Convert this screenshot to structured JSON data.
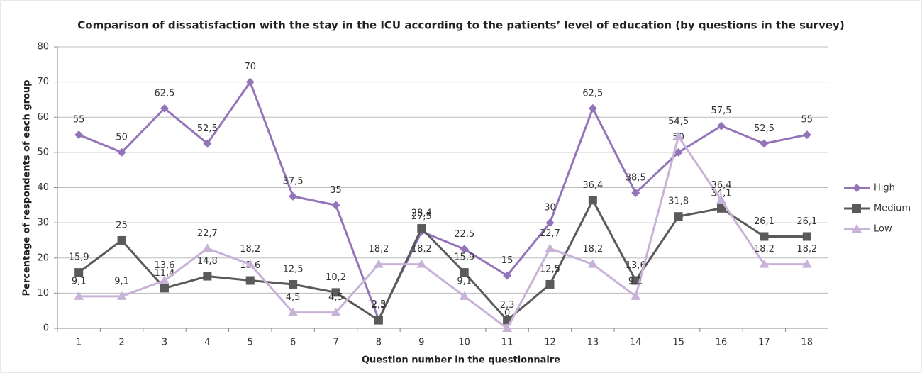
{
  "chart_data": {
    "type": "line",
    "title": "Comparison of dissatisfaction with the stay in the ICU according to the patients’ level of education (by questions in the survey)",
    "x_label": "Question number in the questionnaire",
    "y_label": "Percentage of respondents of each group",
    "categories": [
      "1",
      "2",
      "3",
      "4",
      "5",
      "6",
      "7",
      "8",
      "9",
      "10",
      "11",
      "12",
      "13",
      "14",
      "15",
      "16",
      "17",
      "18"
    ],
    "ylim": [
      0,
      80
    ],
    "yticks": [
      0,
      10,
      20,
      30,
      40,
      50,
      60,
      70,
      80
    ],
    "grid": true,
    "legend": "right",
    "series": [
      {
        "name": "High",
        "color": "#9474b8",
        "marker": "diamond",
        "values": [
          55,
          50,
          62.5,
          52.5,
          70,
          37.5,
          35,
          2.5,
          27.5,
          22.5,
          15,
          30,
          62.5,
          38.5,
          50,
          57.5,
          52.5,
          55
        ],
        "value_labels": [
          "55",
          "50",
          "62,5",
          "52,5",
          "70",
          "37,5",
          "35",
          "2,5",
          "27,5",
          "22,5",
          "15",
          "30",
          "62,5",
          "38,5",
          "50",
          "57,5",
          "52,5",
          "55"
        ]
      },
      {
        "name": "Medium",
        "color": "#5a5a5a",
        "marker": "square",
        "values": [
          15.9,
          25,
          11.4,
          14.8,
          13.6,
          12.5,
          10.2,
          2.3,
          28.4,
          15.9,
          2.3,
          12.5,
          36.4,
          13.6,
          31.8,
          34.1,
          26.1,
          26.1
        ],
        "value_labels": [
          "15,9",
          "25",
          "11,4",
          "14,8",
          "13,6",
          "12,5",
          "10,2",
          "2,3",
          "28,4",
          "15,9",
          "2,3",
          "12,5",
          "36,4",
          "13,6",
          "31,8",
          "34,1",
          "26,1",
          "26,1"
        ]
      },
      {
        "name": "Low",
        "color": "#c8b2d8",
        "marker": "triangle",
        "values": [
          9.1,
          9.1,
          13.6,
          22.7,
          18.2,
          4.5,
          4.5,
          18.2,
          18.2,
          9.1,
          0,
          22.7,
          18.2,
          9.1,
          54.5,
          36.4,
          18.2,
          18.2
        ],
        "value_labels": [
          "9,1",
          "9,1",
          "13,6",
          "22,7",
          "18,2",
          "4,5",
          "4,5",
          "18,2",
          "18,2",
          "9,1",
          "0",
          "22,7",
          "18,2",
          "9,1",
          "54,5",
          "36,4",
          "18,2",
          "18,2"
        ]
      }
    ]
  }
}
